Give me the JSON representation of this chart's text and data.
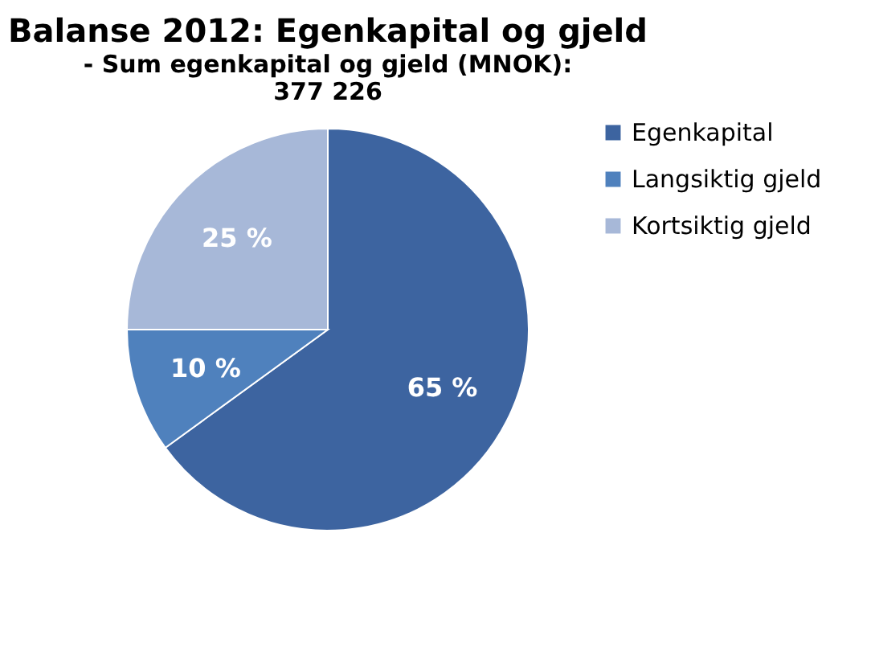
{
  "chart_data": {
    "type": "pie",
    "title": "Balanse 2012: Egenkapital og gjeld",
    "subtitle": "- Sum egenkapital og gjeld (MNOK):\n377 226",
    "categories": [
      "Egenkapital",
      "Langsiktig gjeld",
      "Kortsiktig gjeld"
    ],
    "values": [
      65,
      10,
      25
    ],
    "colors": [
      "#3d64a0",
      "#4f81bd",
      "#a7b8d8"
    ],
    "value_labels": [
      "65 %",
      "10 %",
      "25 %"
    ],
    "legend": "right"
  }
}
